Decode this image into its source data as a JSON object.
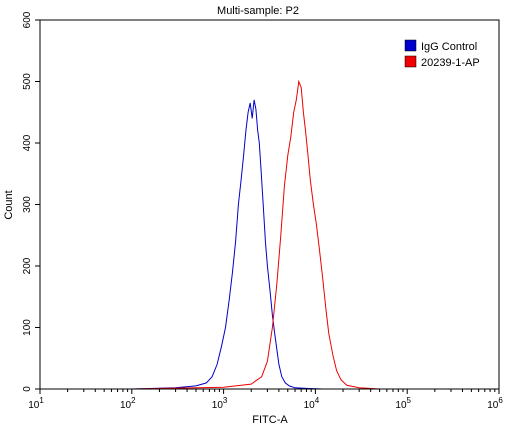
{
  "chart_data": {
    "type": "line",
    "title": "Multi-sample: P2",
    "xlabel": "FITC-A",
    "ylabel": "Count",
    "x_scale": "log",
    "xlim": [
      10,
      1000000
    ],
    "ylim": [
      0,
      600
    ],
    "x_ticks": [
      {
        "value": 10,
        "base": "10",
        "exp": "1"
      },
      {
        "value": 100,
        "base": "10",
        "exp": "2"
      },
      {
        "value": 1000,
        "base": "10",
        "exp": "3"
      },
      {
        "value": 10000,
        "base": "10",
        "exp": "4"
      },
      {
        "value": 100000,
        "base": "10",
        "exp": "5"
      },
      {
        "value": 1000000,
        "base": "10",
        "exp": "6"
      }
    ],
    "y_ticks": [
      "0",
      "100",
      "200",
      "300",
      "400",
      "500",
      "600"
    ],
    "legend_position": "top-right",
    "series": [
      {
        "name": "IgG Control",
        "color": "#0000cc",
        "x": [
          100,
          300,
          500,
          650,
          750,
          850,
          950,
          1050,
          1150,
          1250,
          1350,
          1450,
          1550,
          1650,
          1750,
          1850,
          1950,
          2050,
          2150,
          2250,
          2350,
          2450,
          2550,
          2700,
          2850,
          3000,
          3200,
          3400,
          3600,
          3800,
          4000,
          4300,
          4700,
          5200,
          6000,
          8000,
          12000,
          30000,
          1000000
        ],
        "values": [
          0,
          2,
          5,
          10,
          20,
          40,
          70,
          100,
          145,
          190,
          240,
          300,
          340,
          380,
          420,
          450,
          465,
          440,
          470,
          455,
          420,
          400,
          360,
          300,
          240,
          200,
          160,
          120,
          90,
          65,
          40,
          20,
          10,
          5,
          2,
          1,
          0,
          0,
          0
        ]
      },
      {
        "name": "20239-1-AP",
        "color": "#ee0000",
        "x": [
          100,
          1000,
          2000,
          2600,
          3000,
          3400,
          3800,
          4200,
          4600,
          5000,
          5400,
          5800,
          6200,
          6600,
          7000,
          7400,
          7800,
          8300,
          8800,
          9500,
          10200,
          11000,
          12000,
          13000,
          14000,
          15500,
          17000,
          19000,
          22000,
          30000,
          50000,
          1000000
        ],
        "values": [
          0,
          3,
          8,
          20,
          45,
          100,
          170,
          250,
          330,
          380,
          410,
          450,
          470,
          500,
          490,
          450,
          420,
          380,
          340,
          300,
          270,
          230,
          180,
          130,
          90,
          55,
          30,
          15,
          6,
          2,
          0,
          0
        ]
      }
    ]
  }
}
